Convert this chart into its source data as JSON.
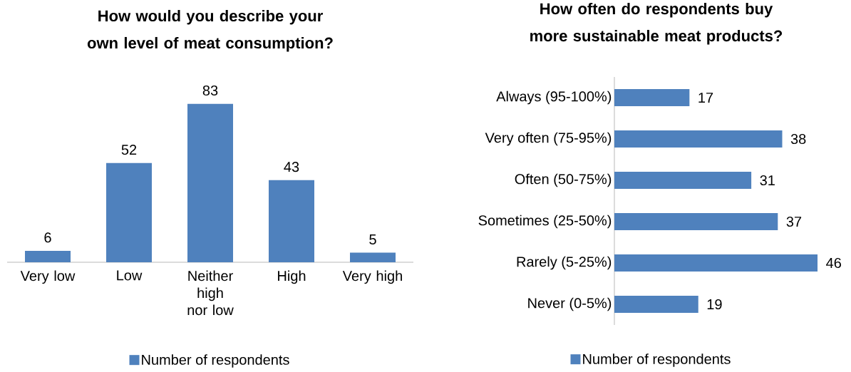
{
  "chart_data": [
    {
      "type": "bar",
      "title": "How would you describe your own level of meat consumption?",
      "categories": [
        "Very low",
        "Low",
        "Neither high nor low",
        "High",
        "Very high"
      ],
      "series": [
        {
          "name": "Number of respondents",
          "color": "#4f81bd",
          "values": [
            6,
            52,
            83,
            43,
            5
          ]
        }
      ],
      "data_labels": true,
      "legend": "bottom"
    },
    {
      "type": "bar",
      "orientation": "horizontal",
      "title": "How often do respondents buy more sustainable meat products?",
      "categories": [
        "Always (95-100%)",
        "Very often (75-95%)",
        "Often (50-75%)",
        "Sometimes (25-50%)",
        "Rarely (5-25%)",
        "Never (0-5%)"
      ],
      "series": [
        {
          "name": "Number of respondents",
          "color": "#4f81bd",
          "values": [
            17,
            38,
            31,
            37,
            46,
            19
          ]
        }
      ],
      "data_labels": true,
      "legend": "bottom"
    }
  ]
}
